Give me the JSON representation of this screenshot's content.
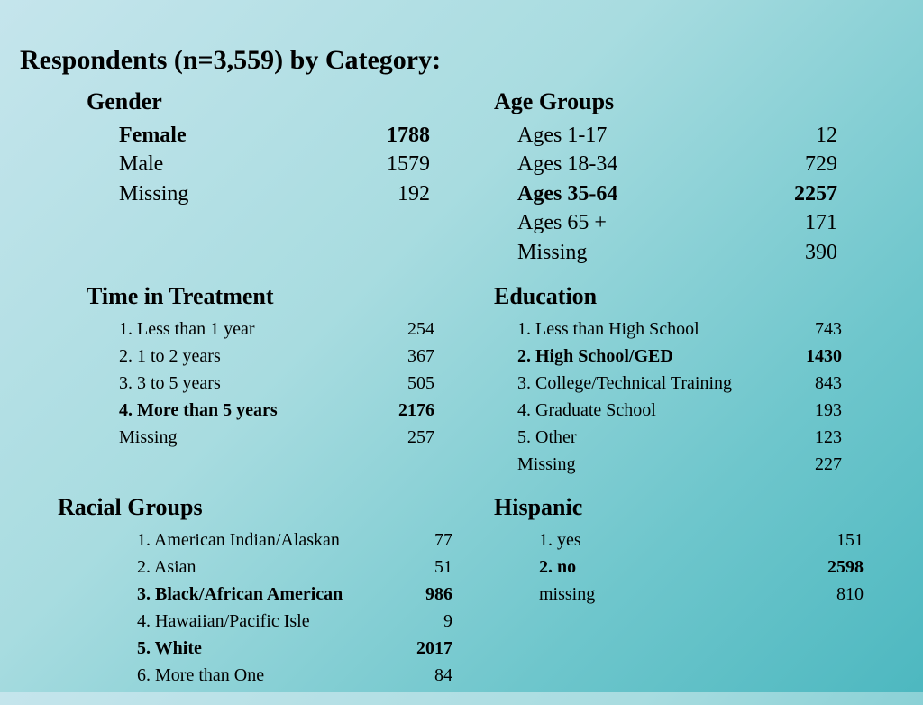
{
  "title": "Respondents (n=3,559) by Category:",
  "sections": {
    "gender": {
      "title": "Gender",
      "rows": [
        {
          "label": "Female",
          "value": "1788",
          "bold": true
        },
        {
          "label": "Male",
          "value": "1579",
          "bold": false
        },
        {
          "label": "Missing",
          "value": "192",
          "bold": false
        }
      ]
    },
    "age": {
      "title": "Age Groups",
      "rows": [
        {
          "label": "Ages 1-17",
          "value": "12",
          "bold": false
        },
        {
          "label": "Ages 18-34",
          "value": "729",
          "bold": false
        },
        {
          "label": "Ages 35-64",
          "value": "2257",
          "bold": true
        },
        {
          "label": "Ages 65 +",
          "value": "171",
          "bold": false
        },
        {
          "label": "Missing",
          "value": "390",
          "bold": false
        }
      ]
    },
    "treatment": {
      "title": "Time in Treatment",
      "rows": [
        {
          "label": "1. Less than 1 year",
          "value": "254",
          "bold": false
        },
        {
          "label": "2. 1 to 2 years",
          "value": "367",
          "bold": false
        },
        {
          "label": "3. 3 to 5 years",
          "value": "505",
          "bold": false
        },
        {
          "label": "4. More than 5 years",
          "value": "2176",
          "bold": true
        },
        {
          "label": "Missing",
          "value": "257",
          "bold": false
        }
      ]
    },
    "education": {
      "title": "Education",
      "rows": [
        {
          "label": "1. Less than High School",
          "value": "743",
          "bold": false
        },
        {
          "label": "2. High School/GED",
          "value": "1430",
          "bold": true
        },
        {
          "label": "3. College/Technical Training",
          "value": "843",
          "bold": false
        },
        {
          "label": "4. Graduate School",
          "value": "193",
          "bold": false
        },
        {
          "label": "5. Other",
          "value": "123",
          "bold": false
        },
        {
          "label": "Missing",
          "value": "227",
          "bold": false
        }
      ]
    },
    "racial": {
      "title": "Racial Groups",
      "rows": [
        {
          "label": "1. American Indian/Alaskan",
          "value": "77",
          "bold": false
        },
        {
          "label": "2. Asian",
          "value": "51",
          "bold": false
        },
        {
          "label": "3. Black/African American",
          "value": "986",
          "bold": true
        },
        {
          "label": "4. Hawaiian/Pacific Isle",
          "value": "9",
          "bold": false
        },
        {
          "label": "5. White",
          "value": "2017",
          "bold": true
        },
        {
          "label": "6. More than One",
          "value": "84",
          "bold": false
        }
      ]
    },
    "hispanic": {
      "title": "Hispanic",
      "rows": [
        {
          "label": "1. yes",
          "value": "151",
          "bold": false
        },
        {
          "label": "2. no",
          "value": "2598",
          "bold": true
        },
        {
          "label": "missing",
          "value": "810",
          "bold": false
        }
      ]
    }
  },
  "styling": {
    "background_gradient_start": "#c5e5ec",
    "background_gradient_end": "#4db8c0",
    "text_color": "#000000",
    "title_fontsize": 30,
    "section_title_fontsize": 26,
    "row_fontsize_regular": 20,
    "row_fontsize_large": 24,
    "font_family": "Times New Roman"
  }
}
